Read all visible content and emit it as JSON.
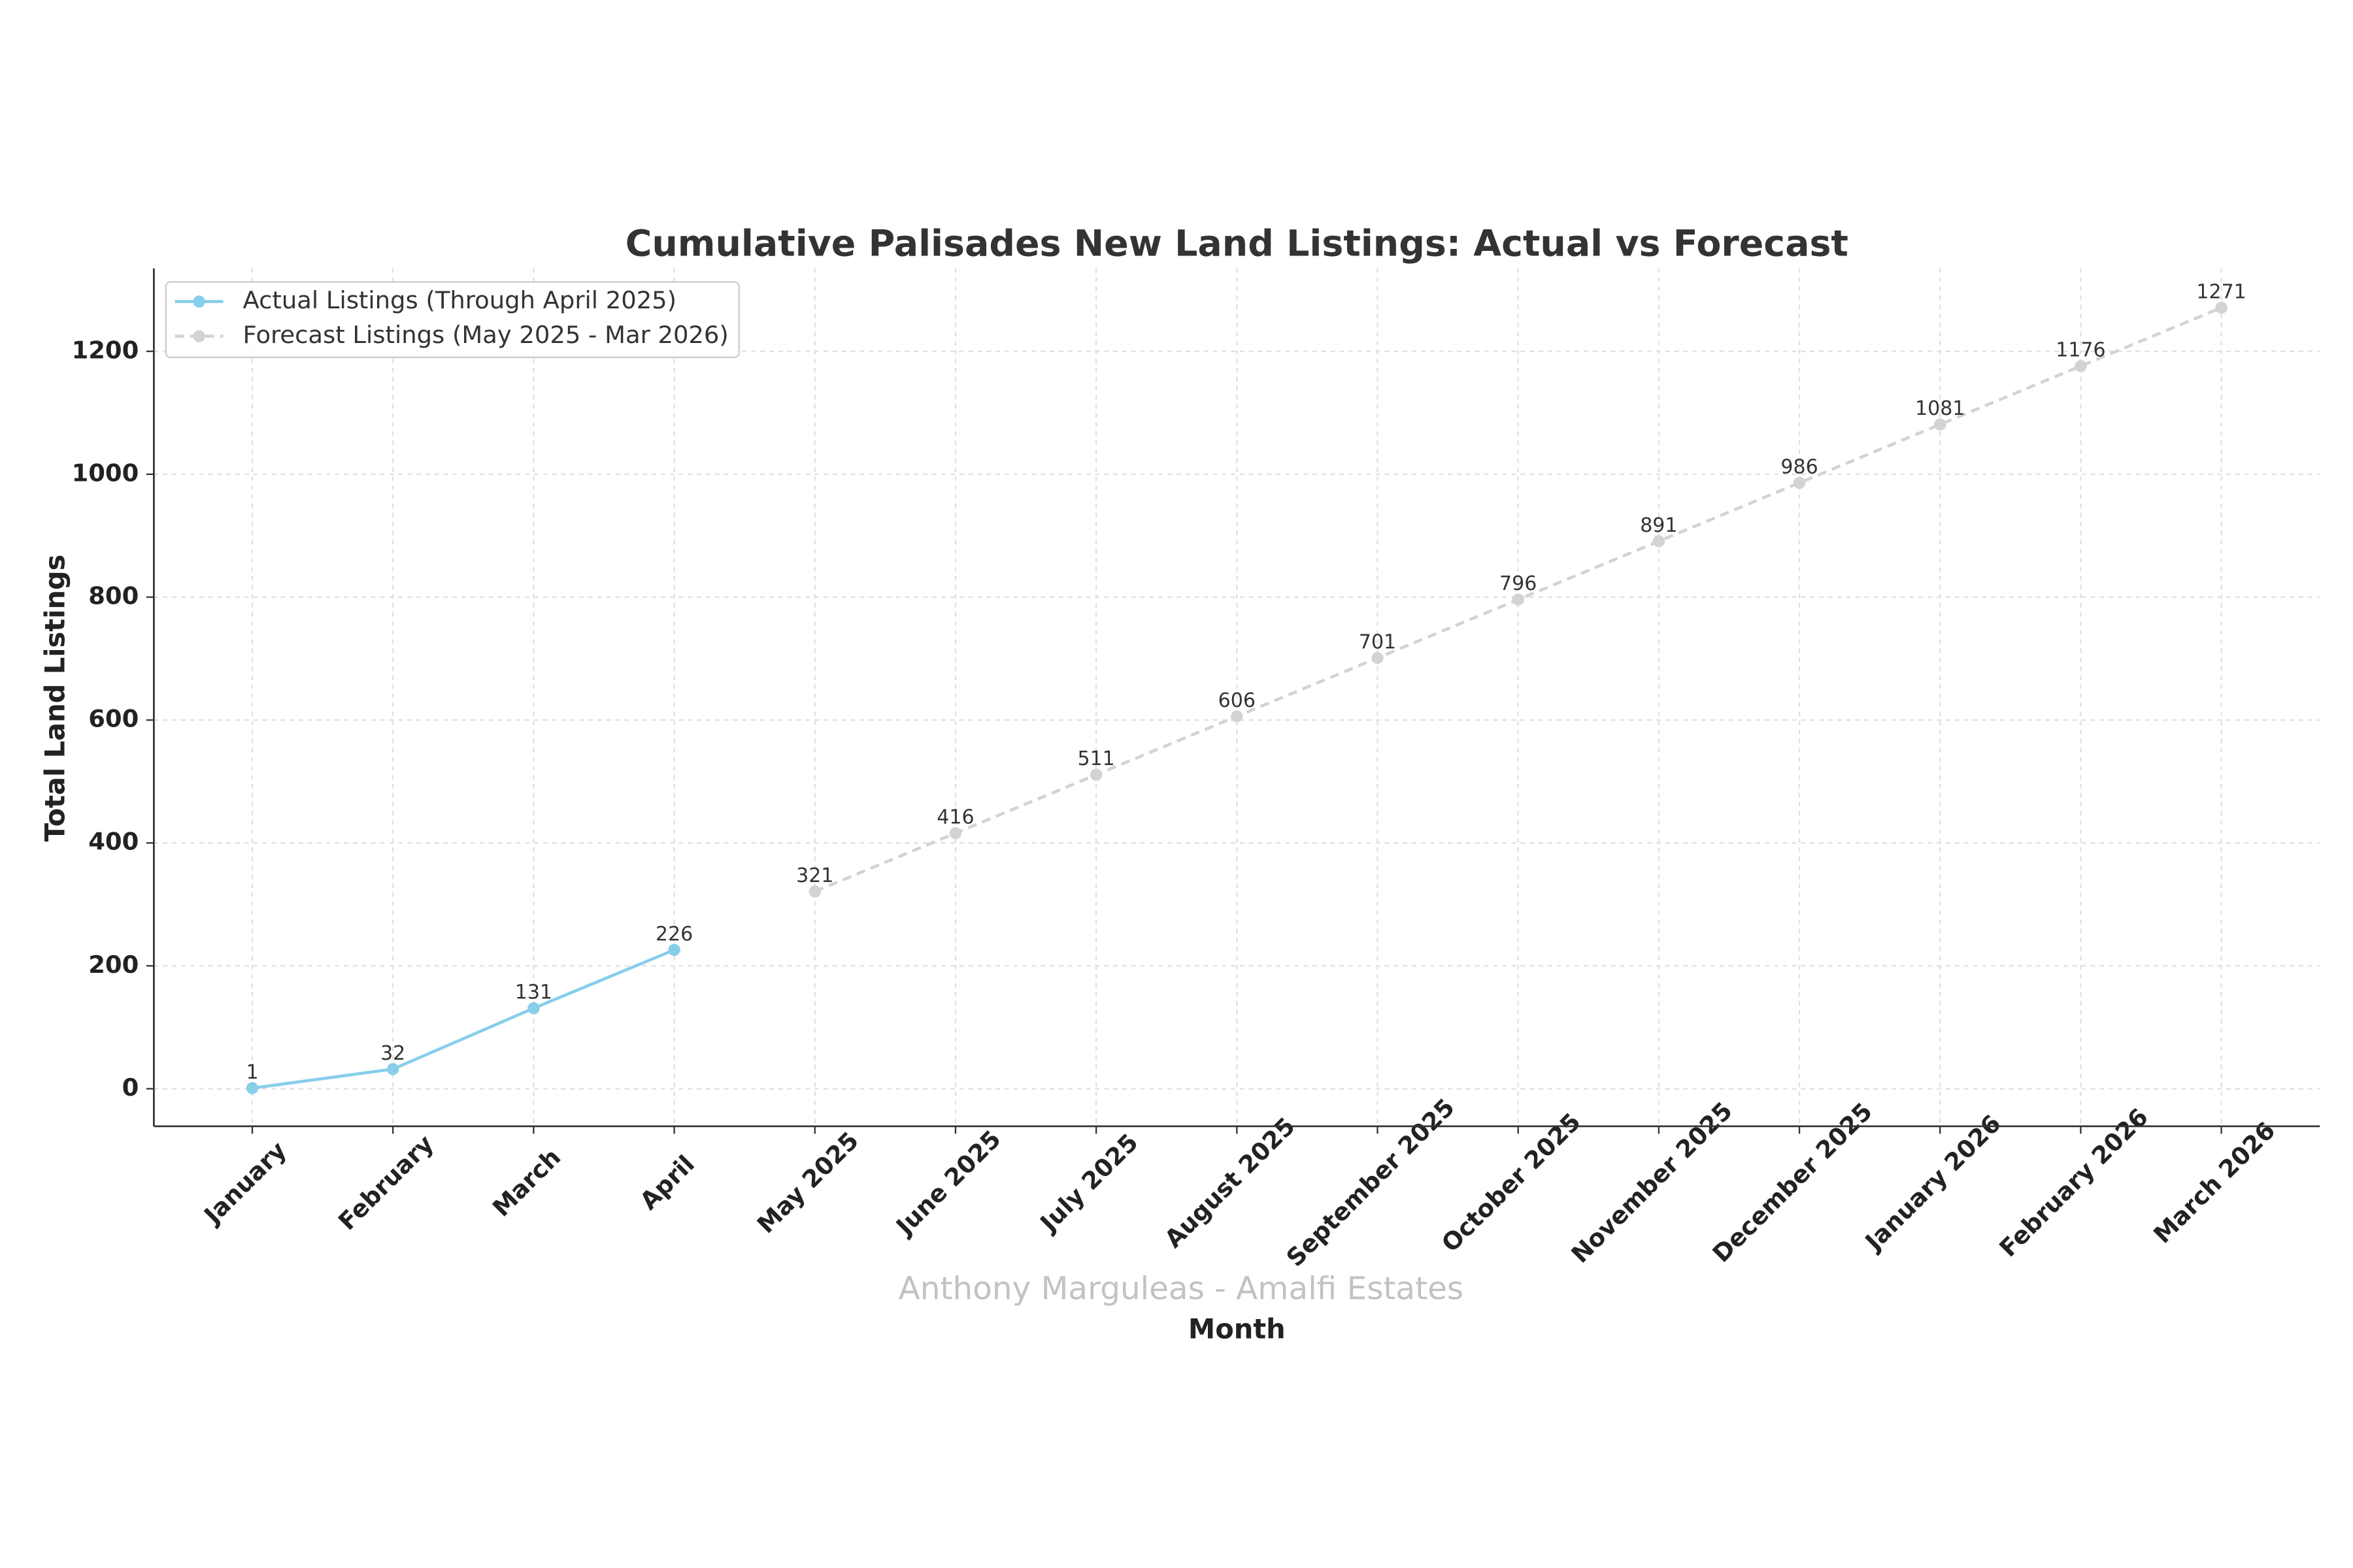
{
  "chart_data": {
    "type": "line",
    "title": "Cumulative Palisades New Land Listings: Actual vs Forecast",
    "x_label": "Month",
    "y_label": "Total Land Listings",
    "annotation": "Anthony Marguleas - Amalfi Estates",
    "categories": [
      "January",
      "February",
      "March",
      "April",
      "May 2025",
      "June 2025",
      "July 2025",
      "August 2025",
      "September 2025",
      "October 2025",
      "November 2025",
      "December 2025",
      "January 2026",
      "February 2026",
      "March 2026"
    ],
    "series": [
      {
        "name": "Actual Listings (Through April 2025)",
        "color": "#87ceeb",
        "linestyle": "solid",
        "values": [
          1,
          32,
          131,
          226,
          null,
          null,
          null,
          null,
          null,
          null,
          null,
          null,
          null,
          null,
          null
        ]
      },
      {
        "name": "Forecast Listings (May 2025 - Mar 2026)",
        "color": "#d3d3d3",
        "linestyle": "dashed",
        "values": [
          null,
          null,
          null,
          null,
          321,
          416,
          511,
          606,
          701,
          796,
          891,
          986,
          1081,
          1176,
          1271
        ]
      }
    ],
    "ylim": [
      -61,
      1335
    ],
    "yticks": [
      0,
      200,
      400,
      600,
      800,
      1000,
      1200
    ],
    "grid": true,
    "legend": "upper left"
  }
}
